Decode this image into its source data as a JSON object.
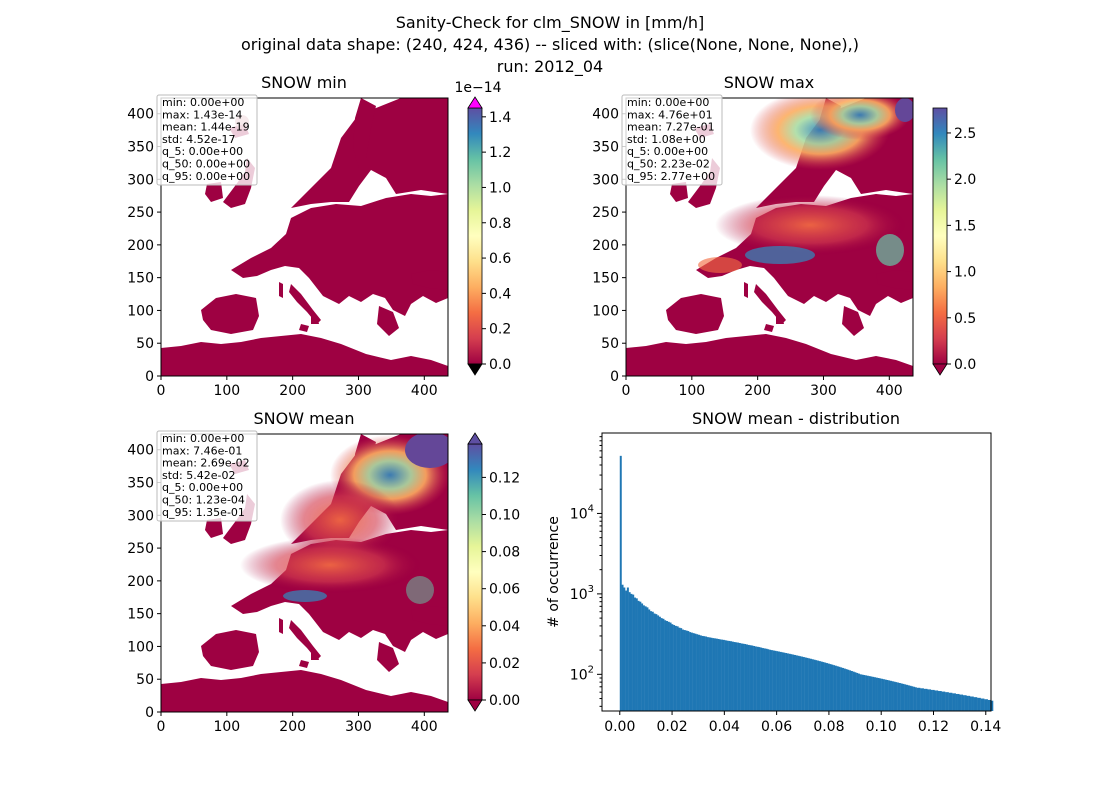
{
  "title_lines": [
    "Sanity-Check for clm_SNOW in [mm/h]",
    "original data shape: (240, 424, 436) -- sliced with: (slice(None, None, None),)",
    "run: 2012_04"
  ],
  "colors": {
    "land_low": "#9e0142",
    "ocean": "#ffffff",
    "histogram": "#1f77b4",
    "cbar_over_min": "#ff00ff",
    "cbar_under": "#000000"
  },
  "chart_data": [
    {
      "type": "heatmap",
      "title": "SNOW min",
      "colormap": "Spectral_r",
      "x_ticks": [
        0,
        100,
        200,
        300,
        400
      ],
      "y_ticks": [
        0,
        50,
        100,
        150,
        200,
        250,
        300,
        350,
        400
      ],
      "xlim": [
        0,
        436
      ],
      "ylim": [
        0,
        424
      ],
      "colorbar": {
        "ticks": [
          "0.0",
          "0.2",
          "0.4",
          "0.6",
          "0.8",
          "1.0",
          "1.2",
          "1.4"
        ],
        "min": 0,
        "max": 1.45,
        "offset_text": "1e−14",
        "extend": "both"
      },
      "stats": [
        "min: 0.00e+00",
        "max: 1.43e-14",
        "mean: 1.44e-19",
        "std: 4.52e-17",
        "q_5: 0.00e+00",
        "q_50: 0.00e+00",
        "q_95: 0.00e+00"
      ]
    },
    {
      "type": "heatmap",
      "title": "SNOW max",
      "colormap": "Spectral_r",
      "x_ticks": [
        0,
        100,
        200,
        300,
        400
      ],
      "y_ticks": [
        0,
        50,
        100,
        150,
        200,
        250,
        300,
        350,
        400
      ],
      "xlim": [
        0,
        436
      ],
      "ylim": [
        0,
        424
      ],
      "colorbar": {
        "ticks": [
          "0.0",
          "0.5",
          "1.0",
          "1.5",
          "2.0",
          "2.5"
        ],
        "min": 0,
        "max": 2.77,
        "offset_text": "",
        "extend": "min"
      },
      "stats": [
        "min: 0.00e+00",
        "max: 4.76e+01",
        "mean: 7.27e-01",
        "std: 1.08e+00",
        "q_5: 0.00e+00",
        "q_50: 2.23e-02",
        "q_95: 2.77e+00"
      ]
    },
    {
      "type": "heatmap",
      "title": "SNOW mean",
      "colormap": "Spectral_r",
      "x_ticks": [
        0,
        100,
        200,
        300,
        400
      ],
      "y_ticks": [
        0,
        50,
        100,
        150,
        200,
        250,
        300,
        350,
        400
      ],
      "xlim": [
        0,
        436
      ],
      "ylim": [
        0,
        424
      ],
      "colorbar": {
        "ticks": [
          "0.00",
          "0.02",
          "0.04",
          "0.06",
          "0.08",
          "0.10",
          "0.12"
        ],
        "min": 0,
        "max": 0.138,
        "offset_text": "",
        "extend": "both"
      },
      "stats": [
        "min: 0.00e+00",
        "max: 7.46e-01",
        "mean: 2.69e-02",
        "std: 5.42e-02",
        "q_5: 0.00e+00",
        "q_50: 1.23e-04",
        "q_95: 1.35e-01"
      ]
    },
    {
      "type": "bar",
      "title": "SNOW mean - distribution",
      "ylabel": "# of occurrence",
      "xlabel": "",
      "y_scale": "log",
      "xlim": [
        -0.0068,
        0.142
      ],
      "ylim": [
        35,
        100000
      ],
      "x_ticks": [
        "0.00",
        "0.02",
        "0.04",
        "0.06",
        "0.08",
        "0.10",
        "0.12",
        "0.14"
      ],
      "y_ticks": [
        "10^2",
        "10^3",
        "10^4"
      ],
      "bin_width": 0.00068,
      "bin_start": 0.0,
      "counts": [
        52000,
        1300,
        1200,
        1100,
        1200,
        1050,
        1000,
        980,
        900,
        880,
        820,
        800,
        760,
        720,
        700,
        680,
        640,
        610,
        600,
        570,
        560,
        540,
        520,
        500,
        490,
        470,
        460,
        450,
        440,
        420,
        410,
        400,
        395,
        380,
        375,
        360,
        355,
        350,
        345,
        335,
        330,
        325,
        320,
        315,
        310,
        305,
        300,
        298,
        295,
        290,
        288,
        285,
        282,
        280,
        278,
        275,
        272,
        270,
        268,
        265,
        262,
        260,
        258,
        255,
        252,
        250,
        248,
        245,
        242,
        240,
        238,
        235,
        232,
        230,
        228,
        225,
        222,
        220,
        218,
        215,
        212,
        210,
        208,
        205,
        202,
        200,
        198,
        196,
        194,
        192,
        190,
        188,
        186,
        184,
        182,
        180,
        178,
        176,
        174,
        172,
        170,
        168,
        166,
        164,
        162,
        160,
        158,
        156,
        154,
        152,
        150,
        148,
        146,
        144,
        142,
        140,
        138,
        136,
        134,
        132,
        130,
        128,
        126,
        124,
        122,
        120,
        118,
        116,
        114,
        112,
        110,
        108,
        106,
        104,
        102,
        100,
        99,
        98,
        97,
        96,
        95,
        94,
        93,
        92,
        91,
        90,
        89,
        88,
        87,
        86,
        85,
        84,
        83,
        82,
        81,
        80,
        79,
        78,
        77,
        76,
        75,
        74,
        73,
        72,
        71,
        70,
        69,
        68,
        68,
        67,
        67,
        66,
        66,
        65,
        65,
        64,
        64,
        63,
        63,
        62,
        62,
        61,
        61,
        60,
        60,
        59,
        59,
        58,
        58,
        57,
        57,
        56,
        56,
        55,
        55,
        54,
        54,
        53,
        53,
        52,
        52,
        51,
        51,
        50,
        50,
        49,
        49,
        48,
        48,
        47
      ]
    }
  ]
}
